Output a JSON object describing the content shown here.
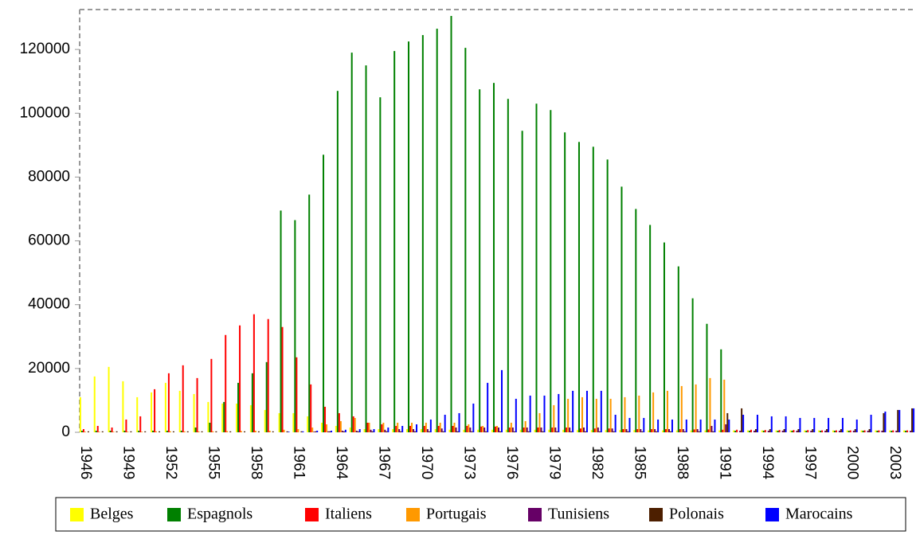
{
  "chart_data": {
    "type": "bar",
    "categories": [
      "1946",
      null,
      null,
      "1949",
      null,
      null,
      "1952",
      null,
      null,
      "1955",
      null,
      null,
      "1958",
      null,
      null,
      "1961",
      null,
      null,
      "1964",
      null,
      null,
      "1967",
      null,
      null,
      "1970",
      null,
      null,
      "1973",
      null,
      null,
      "1976",
      null,
      null,
      "1979",
      null,
      null,
      "1982",
      null,
      null,
      "1985",
      null,
      null,
      "1988",
      null,
      null,
      "1991",
      null,
      null,
      "1994",
      null,
      null,
      "1997",
      null,
      null,
      "2000",
      null,
      null,
      "2003",
      null
    ],
    "series": [
      {
        "name": "Belges",
        "color": "#ffff00",
        "values": [
          11000,
          17500,
          20500,
          16000,
          11000,
          12500,
          15500,
          13000,
          12000,
          9500,
          9000,
          9000,
          8500,
          7000,
          6000,
          6000,
          5000,
          3000,
          2000,
          1500,
          1000,
          1000,
          1000,
          1000,
          1000,
          1000,
          800,
          800,
          800,
          800,
          800,
          800,
          800,
          800,
          800,
          700,
          700,
          700,
          700,
          700,
          600,
          600,
          600,
          600,
          600,
          600,
          600,
          600,
          600,
          600,
          600,
          600,
          600,
          600,
          600,
          600,
          600,
          600,
          600
        ]
      },
      {
        "name": "Espagnols",
        "color": "#008000",
        "values": [
          500,
          500,
          500,
          500,
          500,
          500,
          500,
          500,
          1500,
          3000,
          9500,
          15500,
          18500,
          22000,
          69500,
          66500,
          74500,
          87000,
          107000,
          119000,
          115000,
          105000,
          119500,
          122500,
          124500,
          126500,
          130500,
          120500,
          107500,
          109500,
          104500,
          94500,
          103000,
          101000,
          94000,
          91000,
          89500,
          85500,
          77000,
          70000,
          65000,
          59500,
          52000,
          42000,
          34000,
          26000,
          500,
          500,
          500,
          500,
          500,
          500,
          500,
          500,
          500,
          500,
          500,
          500,
          500
        ]
      },
      {
        "name": "Italiens",
        "color": "#ff0000",
        "values": [
          1000,
          2000,
          1500,
          4000,
          5000,
          13500,
          18500,
          21000,
          17000,
          23000,
          30500,
          33500,
          37000,
          35500,
          33000,
          23500,
          15000,
          8000,
          6000,
          5000,
          3000,
          2500,
          2000,
          2000,
          2000,
          2000,
          2000,
          2000,
          1800,
          1800,
          1500,
          1500,
          1500,
          1500,
          1500,
          1200,
          1200,
          1200,
          1000,
          1000,
          1000,
          1000,
          1000,
          900,
          900,
          800,
          800,
          800,
          700,
          700,
          700,
          700,
          600,
          600,
          600,
          600,
          600,
          600,
          600
        ]
      },
      {
        "name": "Portugais",
        "color": "#ff9900",
        "values": [
          200,
          200,
          200,
          200,
          200,
          300,
          300,
          300,
          300,
          300,
          400,
          400,
          500,
          500,
          800,
          1000,
          1500,
          2500,
          3500,
          4500,
          3000,
          3000,
          3000,
          3000,
          3000,
          3000,
          3000,
          2500,
          2000,
          2000,
          3000,
          3500,
          6000,
          8500,
          10500,
          11000,
          10500,
          10500,
          11000,
          11500,
          12500,
          13000,
          14500,
          15000,
          17000,
          16500,
          0,
          0,
          0,
          0,
          0,
          0,
          0,
          0,
          0,
          0,
          0,
          0,
          0
        ]
      },
      {
        "name": "Tunisiens",
        "color": "#660066",
        "values": [
          0,
          0,
          0,
          0,
          0,
          0,
          0,
          0,
          0,
          0,
          0,
          0,
          0,
          0,
          0,
          0,
          200,
          300,
          500,
          500,
          800,
          800,
          1000,
          1000,
          1000,
          1200,
          1500,
          1500,
          1500,
          1500,
          1500,
          1500,
          1500,
          1500,
          1500,
          1500,
          1500,
          1200,
          1000,
          1000,
          1000,
          1000,
          1000,
          1000,
          2000,
          2500,
          500,
          500,
          500,
          500,
          500,
          500,
          500,
          500,
          500,
          500,
          500,
          500,
          500
        ]
      },
      {
        "name": "Polonais",
        "color": "#4d1f00",
        "values": [
          300,
          300,
          300,
          300,
          300,
          300,
          300,
          300,
          300,
          300,
          300,
          300,
          300,
          300,
          300,
          300,
          300,
          300,
          300,
          300,
          300,
          300,
          300,
          300,
          300,
          300,
          300,
          300,
          300,
          300,
          300,
          300,
          300,
          300,
          300,
          300,
          300,
          300,
          300,
          300,
          300,
          300,
          300,
          300,
          300,
          6000,
          7500,
          1000,
          1000,
          1000,
          1000,
          1000,
          1000,
          1000,
          1000,
          1000,
          6000,
          7000,
          7500
        ]
      },
      {
        "name": "Marocains",
        "color": "#0000ff",
        "values": [
          0,
          0,
          0,
          0,
          0,
          0,
          0,
          0,
          0,
          0,
          0,
          0,
          0,
          0,
          200,
          300,
          500,
          500,
          800,
          1000,
          1000,
          1500,
          2000,
          2500,
          4000,
          5500,
          6000,
          9000,
          15500,
          19500,
          10500,
          11500,
          11500,
          12000,
          13000,
          13000,
          13000,
          5500,
          4500,
          4500,
          4000,
          4000,
          4000,
          4000,
          4000,
          4000,
          5500,
          5500,
          5000,
          5000,
          4500,
          4500,
          4500,
          4500,
          4000,
          5500,
          6500,
          7000,
          7500
        ]
      }
    ],
    "ylim": [
      0,
      132500
    ],
    "yticks": [
      0,
      20000,
      40000,
      60000,
      80000,
      100000,
      120000
    ],
    "legend": "bottom"
  }
}
